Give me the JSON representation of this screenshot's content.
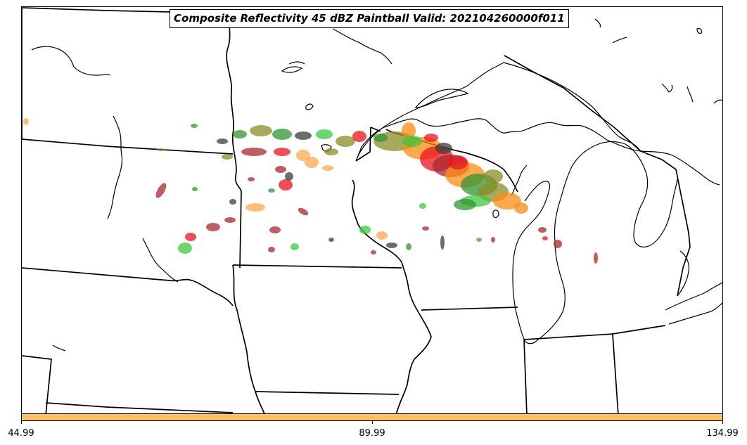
{
  "title": "Composite Reflectivity 45 dBZ Paintball Valid: 202104260000f011",
  "colorbar": {
    "color": "#ffc064",
    "ticks": [
      "44.99",
      "89.99",
      "134.99"
    ]
  },
  "paintball_colors": {
    "red": "#e8141e",
    "dark_red": "#a8282d",
    "orange": "#ff8c14",
    "light_orange": "#ffa850",
    "green": "#3cc83c",
    "dark_green": "#329632",
    "olive": "#8c8c28",
    "gray": "#3c3c3c"
  }
}
